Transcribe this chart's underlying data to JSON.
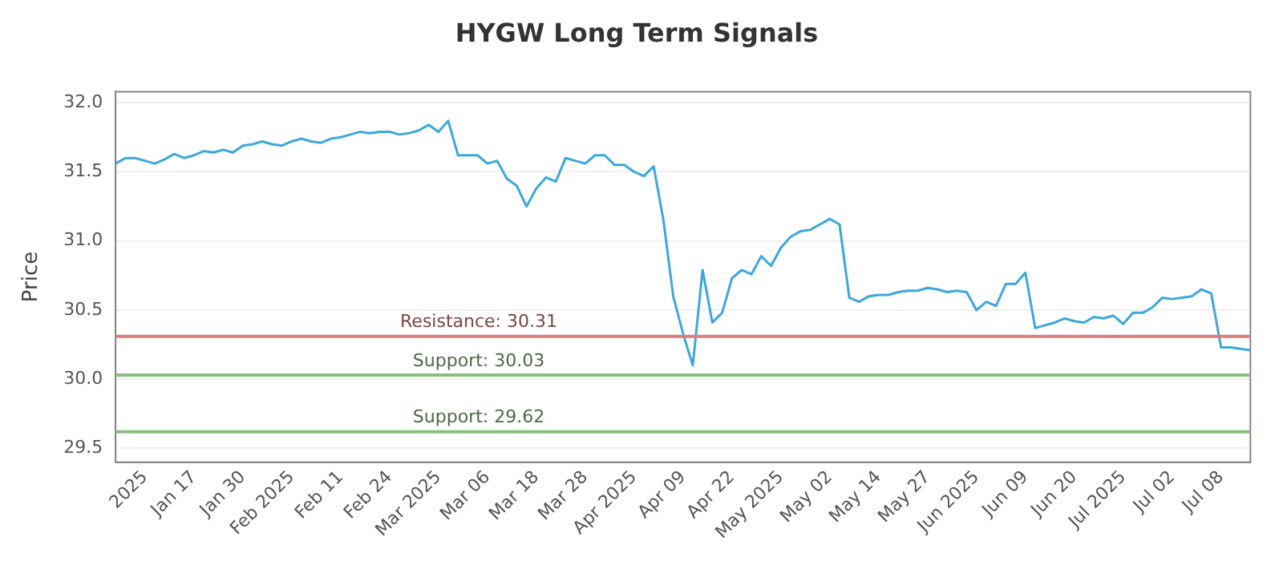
{
  "chart_data": {
    "type": "line",
    "title": "HYGW Long Term Signals",
    "ylabel": "Price",
    "categories": [
      null,
      null,
      null,
      "2025",
      null,
      null,
      null,
      null,
      "Jan 17",
      null,
      null,
      null,
      null,
      "Jan 30",
      null,
      null,
      null,
      null,
      "Feb 2025",
      null,
      null,
      null,
      null,
      "Feb 11",
      null,
      null,
      null,
      null,
      "Feb 24",
      null,
      null,
      null,
      null,
      "Mar 2025",
      null,
      null,
      null,
      null,
      "Mar 06",
      null,
      null,
      null,
      null,
      "Mar 18",
      null,
      null,
      null,
      null,
      "Mar 28",
      null,
      null,
      null,
      null,
      "Apr 2025",
      null,
      null,
      null,
      null,
      "Apr 09",
      null,
      null,
      null,
      null,
      "Apr 22",
      null,
      null,
      null,
      null,
      "May 2025",
      null,
      null,
      null,
      null,
      "May 02",
      null,
      null,
      null,
      null,
      "May 14",
      null,
      null,
      null,
      null,
      "May 27",
      null,
      null,
      null,
      null,
      "Jun 2025",
      null,
      null,
      null,
      null,
      "Jun 09",
      null,
      null,
      null,
      null,
      "Jun 20",
      null,
      null,
      null,
      null,
      "Jul 2025",
      null,
      null,
      null,
      null,
      "Jul 02",
      null,
      null,
      null,
      null,
      "Jul 08",
      null,
      null,
      null
    ],
    "series": [
      {
        "color": "#3aa8e0",
        "values": [
          31.56,
          31.6,
          31.6,
          31.58,
          31.56,
          31.59,
          31.63,
          31.6,
          31.62,
          31.65,
          31.64,
          31.66,
          31.64,
          31.69,
          31.7,
          31.72,
          31.7,
          31.69,
          31.72,
          31.74,
          31.72,
          31.71,
          31.74,
          31.75,
          31.77,
          31.79,
          31.78,
          31.79,
          31.79,
          31.77,
          31.78,
          31.8,
          31.84,
          31.79,
          31.87,
          31.62,
          31.62,
          31.62,
          31.56,
          31.58,
          31.45,
          31.4,
          31.25,
          31.38,
          31.46,
          31.43,
          31.6,
          31.58,
          31.56,
          31.62,
          31.62,
          31.55,
          31.55,
          31.5,
          31.47,
          31.54,
          31.15,
          30.6,
          30.33,
          30.1,
          30.79,
          30.41,
          30.48,
          30.73,
          30.79,
          30.76,
          30.89,
          30.82,
          30.95,
          31.03,
          31.07,
          31.08,
          31.12,
          31.16,
          31.12,
          30.59,
          30.56,
          30.6,
          30.61,
          30.61,
          30.63,
          30.64,
          30.64,
          30.66,
          30.65,
          30.63,
          30.64,
          30.63,
          30.5,
          30.56,
          30.53,
          30.69,
          30.69,
          30.77,
          30.37,
          30.39,
          30.41,
          30.44,
          30.42,
          30.41,
          30.45,
          30.44,
          30.46,
          30.4,
          30.48,
          30.48,
          30.52,
          30.59,
          30.58,
          30.59,
          30.6,
          30.65,
          30.62,
          30.23,
          30.23,
          30.22,
          30.21
        ]
      }
    ],
    "ylim": [
      29.4,
      32.08
    ],
    "yticks": [
      29.5,
      {
        "value": 30,
        "label": "30.0"
      },
      30.5,
      {
        "value": 31,
        "label": "31.0"
      },
      31.5,
      {
        "value": 32,
        "label": "32.0"
      }
    ],
    "ref_lines": [
      {
        "axis": "y",
        "value": 30.31,
        "label": "Resistance: 30.31",
        "color": "#e07b7b"
      },
      {
        "axis": "y",
        "value": 30.03,
        "label": "Support: 30.03",
        "color": "#86c17a"
      },
      {
        "axis": "y",
        "value": 29.62,
        "label": "Support: 29.62",
        "color": "#86c17a"
      }
    ],
    "grid": "y",
    "legend": false,
    "marker": "none",
    "line_style": "solid"
  }
}
